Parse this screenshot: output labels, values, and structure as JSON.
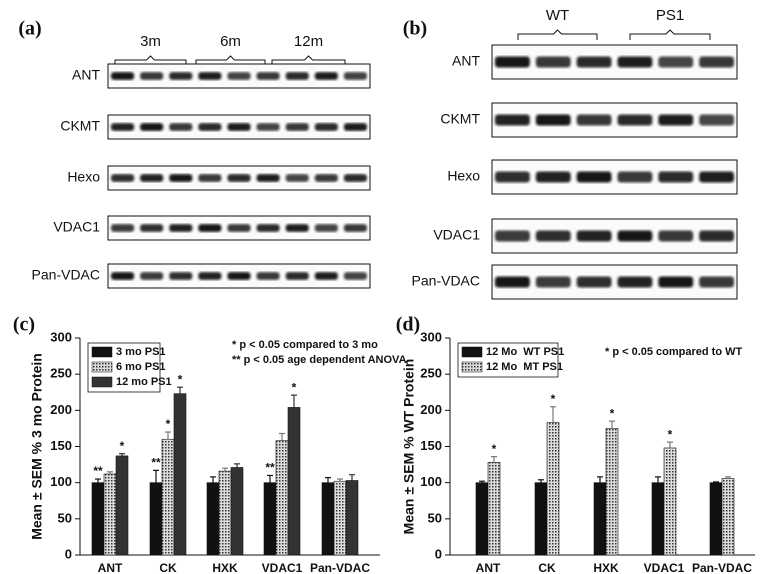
{
  "blots": [
    {
      "panel": "(a)",
      "groups": [
        "3m",
        "6m",
        "12m"
      ],
      "rows": [
        "ANT",
        "CKMT",
        "Hexo",
        "VDAC1",
        "Pan-VDAC"
      ]
    },
    {
      "panel": "(b)",
      "groups": [
        "WT",
        "PS1"
      ],
      "rows": [
        "ANT",
        "CKMT",
        "Hexo",
        "VDAC1",
        "Pan-VDAC"
      ]
    }
  ],
  "chart_data": [
    {
      "type": "bar",
      "panel": "(c)",
      "y_label": "Mean ± SEM % 3 mo Protein",
      "categories": [
        "ANT",
        "CK",
        "HXK",
        "VDAC1",
        "Pan-VDAC"
      ],
      "ylim": [
        0,
        300
      ],
      "yticks": [
        0,
        50,
        100,
        150,
        200,
        250,
        300
      ],
      "annotations": [
        "* p < 0.05 compared to 3 mo",
        "** p < 0.05 age dependent ANOVA"
      ],
      "series": [
        {
          "name": "3 mo PS1",
          "color": "#111111",
          "fill_pattern": "solid",
          "values": [
            100,
            100,
            100,
            100,
            100
          ],
          "errors": [
            5,
            17,
            8,
            10,
            7
          ]
        },
        {
          "name": "6 mo PS1",
          "color": "#777777",
          "fill_pattern": "dots",
          "values": [
            112,
            160,
            116,
            158,
            102
          ],
          "errors": [
            3,
            10,
            4,
            10,
            3
          ]
        },
        {
          "name": "12 mo PS1",
          "color": "#333333",
          "fill_pattern": "solid",
          "values": [
            137,
            223,
            121,
            204,
            103
          ],
          "errors": [
            3,
            9,
            5,
            17,
            8
          ]
        }
      ],
      "significance": [
        {
          "series": 0,
          "category": 0,
          "label": "**"
        },
        {
          "series": 2,
          "category": 0,
          "label": "*"
        },
        {
          "series": 0,
          "category": 1,
          "label": "**"
        },
        {
          "series": 1,
          "category": 1,
          "label": "*"
        },
        {
          "series": 2,
          "category": 1,
          "label": "*"
        },
        {
          "series": 0,
          "category": 3,
          "label": "**"
        },
        {
          "series": 2,
          "category": 3,
          "label": "*"
        }
      ]
    },
    {
      "type": "bar",
      "panel": "(d)",
      "y_label": "Mean ± SEM % WT Protein",
      "categories": [
        "ANT",
        "CK",
        "HXK",
        "VDAC1",
        "Pan-VDAC"
      ],
      "ylim": [
        0,
        300
      ],
      "yticks": [
        0,
        50,
        100,
        150,
        200,
        250,
        300
      ],
      "annotations": [
        "* p < 0.05 compared to WT"
      ],
      "series": [
        {
          "name": "12 Mo  WT PS1",
          "color": "#111111",
          "fill_pattern": "solid",
          "values": [
            100,
            100,
            100,
            100,
            100
          ],
          "errors": [
            2,
            4,
            8,
            8,
            1
          ]
        },
        {
          "name": "12 Mo  MT PS1",
          "color": "#777777",
          "fill_pattern": "dots",
          "values": [
            128,
            183,
            175,
            148,
            106
          ],
          "errors": [
            8,
            22,
            10,
            8,
            2
          ]
        }
      ],
      "significance": [
        {
          "series": 1,
          "category": 0,
          "label": "*"
        },
        {
          "series": 1,
          "category": 1,
          "label": "*"
        },
        {
          "series": 1,
          "category": 2,
          "label": "*"
        },
        {
          "series": 1,
          "category": 3,
          "label": "*"
        }
      ]
    }
  ]
}
